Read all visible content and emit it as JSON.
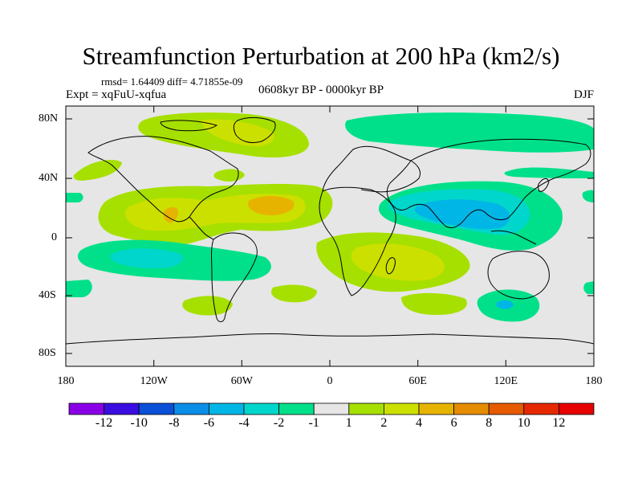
{
  "title": "Streamfunction Perturbation at 200 hPa (km2/s)",
  "stats": "rmsd= 1.64409 diff= 4.71855e-09",
  "expt": "Expt = xqFuU-xqfua",
  "period": "0608kyr BP - 0000kyr BP",
  "season": "DJF",
  "map_data": {
    "projection": "cylindrical equidistant",
    "lat_range": [
      -90,
      90
    ],
    "lon_range": [
      -180,
      180
    ],
    "lat_ticks": [
      "80N",
      "40N",
      "0",
      "40S",
      "80S"
    ],
    "lon_ticks": [
      "180",
      "120W",
      "60W",
      "0",
      "60E",
      "120E",
      "180"
    ],
    "features": [
      {
        "name": "Greenland / N Canada high",
        "value": 4
      },
      {
        "name": "Tropical North Atlantic high",
        "value": 6
      },
      {
        "name": "Eastern North Pacific high",
        "value": 4
      },
      {
        "name": "Africa / Indian Ocean high",
        "value": 4
      },
      {
        "name": "Asia / Indian Ocean low",
        "value": -6
      },
      {
        "name": "Eurasian Arctic low",
        "value": -2
      },
      {
        "name": "South Pacific low",
        "value": -4
      },
      {
        "name": "Southern Indian Ocean low",
        "value": -4
      }
    ]
  },
  "colorbar": {
    "labels": [
      "-12",
      "-10",
      "-8",
      "-6",
      "-4",
      "-2",
      "-1",
      "1",
      "2",
      "4",
      "6",
      "8",
      "10",
      "12"
    ],
    "colors": [
      "#8a00e6",
      "#3a0ee0",
      "#0a4fd8",
      "#0a8ee8",
      "#00b6e6",
      "#00d6cc",
      "#00e08a",
      "#e6e6e6",
      "#a6e000",
      "#cce000",
      "#e6b400",
      "#e68c00",
      "#e65a00",
      "#e62800",
      "#e60000"
    ]
  }
}
